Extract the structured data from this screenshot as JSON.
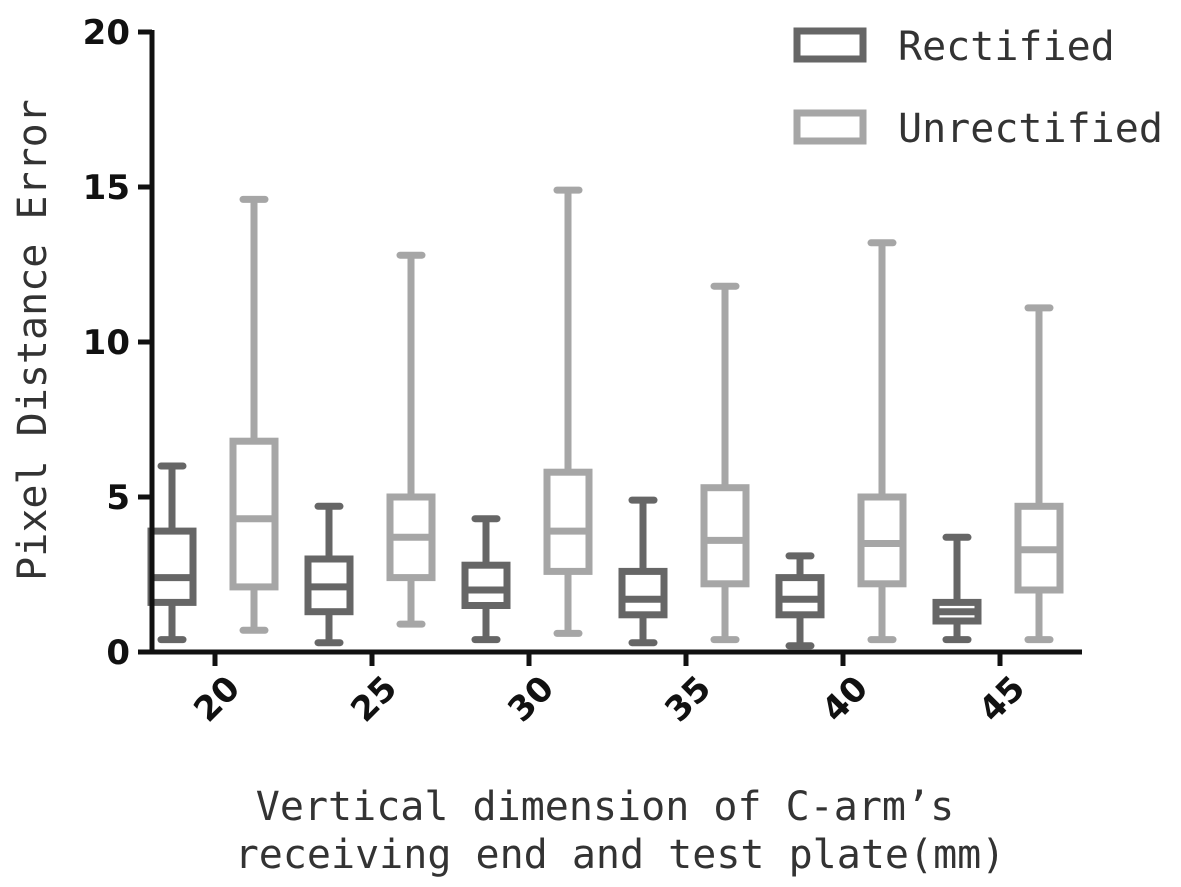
{
  "chart_data": {
    "type": "boxplot",
    "title": "",
    "ylabel": "Pixel Distance Error",
    "xlabel_lines": [
      "Vertical dimension of C-arm’s",
      "receiving end and test plate(mm)"
    ],
    "categories": [
      "20",
      "25",
      "30",
      "35",
      "40",
      "45"
    ],
    "ylim": [
      0,
      20
    ],
    "yticks": [
      "0",
      "5",
      "10",
      "15",
      "20"
    ],
    "legend_position": "top-right",
    "series": [
      {
        "name": "Rectified",
        "color": "#666666",
        "boxes": [
          {
            "min": 0.4,
            "q1": 1.6,
            "median": 2.4,
            "q3": 3.9,
            "max": 6.0
          },
          {
            "min": 0.3,
            "q1": 1.3,
            "median": 2.1,
            "q3": 3.0,
            "max": 4.7
          },
          {
            "min": 0.4,
            "q1": 1.5,
            "median": 2.0,
            "q3": 2.8,
            "max": 4.3
          },
          {
            "min": 0.3,
            "q1": 1.2,
            "median": 1.7,
            "q3": 2.6,
            "max": 4.9
          },
          {
            "min": 0.2,
            "q1": 1.2,
            "median": 1.7,
            "q3": 2.4,
            "max": 3.1
          },
          {
            "min": 0.4,
            "q1": 1.0,
            "median": 1.3,
            "q3": 1.6,
            "max": 3.7
          }
        ]
      },
      {
        "name": "Unrectified",
        "color": "#a6a6a6",
        "boxes": [
          {
            "min": 0.7,
            "q1": 2.1,
            "median": 4.3,
            "q3": 6.8,
            "max": 14.6
          },
          {
            "min": 0.9,
            "q1": 2.4,
            "median": 3.7,
            "q3": 5.0,
            "max": 12.8
          },
          {
            "min": 0.6,
            "q1": 2.6,
            "median": 3.9,
            "q3": 5.8,
            "max": 14.9
          },
          {
            "min": 0.4,
            "q1": 2.2,
            "median": 3.6,
            "q3": 5.3,
            "max": 11.8
          },
          {
            "min": 0.4,
            "q1": 2.2,
            "median": 3.5,
            "q3": 5.0,
            "max": 13.2
          },
          {
            "min": 0.4,
            "q1": 2.0,
            "median": 3.3,
            "q3": 4.7,
            "max": 11.1
          }
        ]
      }
    ]
  }
}
